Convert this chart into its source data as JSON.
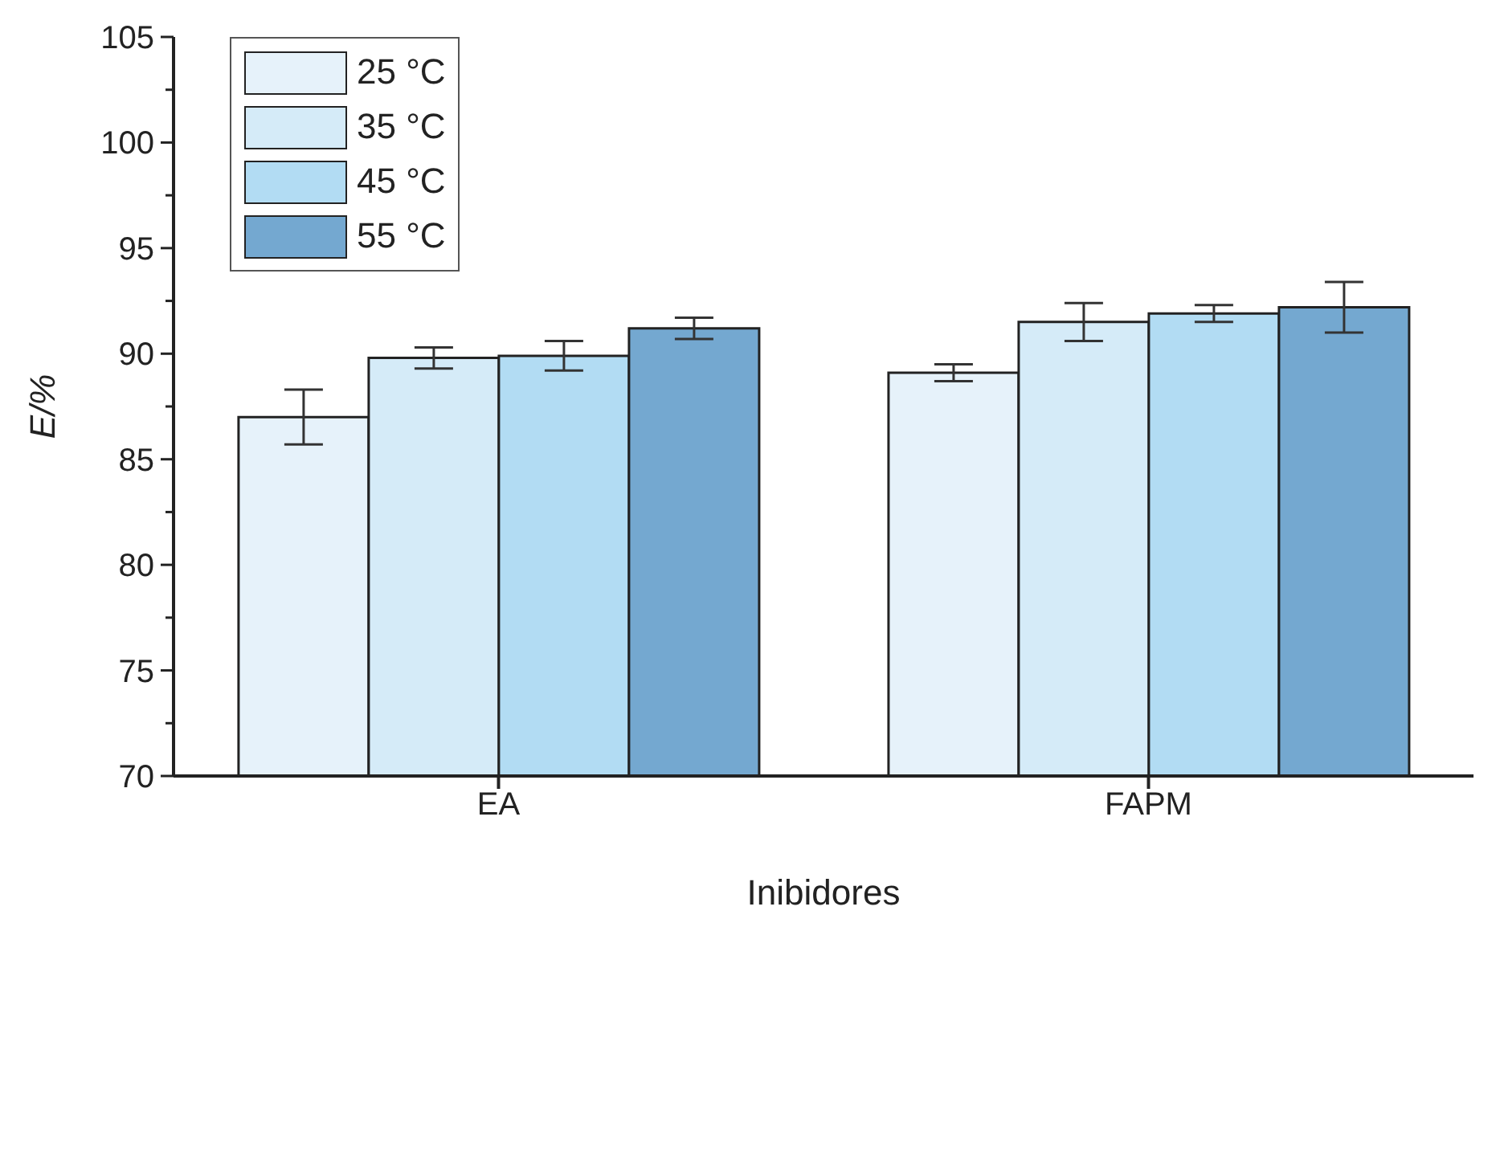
{
  "chart_data": {
    "type": "bar",
    "xlabel": "Inibidores",
    "ylabel": "E/%",
    "categories": [
      "EA",
      "FAPM"
    ],
    "series": [
      {
        "name": "25 °C",
        "color": "#e6f2fa",
        "values": [
          87.0,
          89.1
        ],
        "errors": [
          1.3,
          0.4
        ]
      },
      {
        "name": "35 °C",
        "color": "#d5ebf8",
        "values": [
          89.8,
          91.5
        ],
        "errors": [
          0.5,
          0.9
        ]
      },
      {
        "name": "45 °C",
        "color": "#b2dcf3",
        "values": [
          89.9,
          91.9
        ],
        "errors": [
          0.7,
          0.4
        ]
      },
      {
        "name": "55 °C",
        "color": "#74a8d0",
        "values": [
          91.2,
          92.2
        ],
        "errors": [
          0.5,
          1.2
        ]
      }
    ],
    "ylim": [
      70,
      105
    ],
    "yticks": [
      70,
      {
        "value": 72.5,
        "label": null
      },
      75,
      {
        "value": 77.5,
        "label": null
      },
      80,
      {
        "value": 82.5,
        "label": null
      },
      85,
      {
        "value": 87.5,
        "label": null
      },
      90,
      {
        "value": 92.5,
        "label": null
      },
      95,
      {
        "value": 97.5,
        "label": null
      },
      100,
      {
        "value": 102.5,
        "label": null
      },
      105
    ],
    "grid": false,
    "legend": "top left"
  }
}
